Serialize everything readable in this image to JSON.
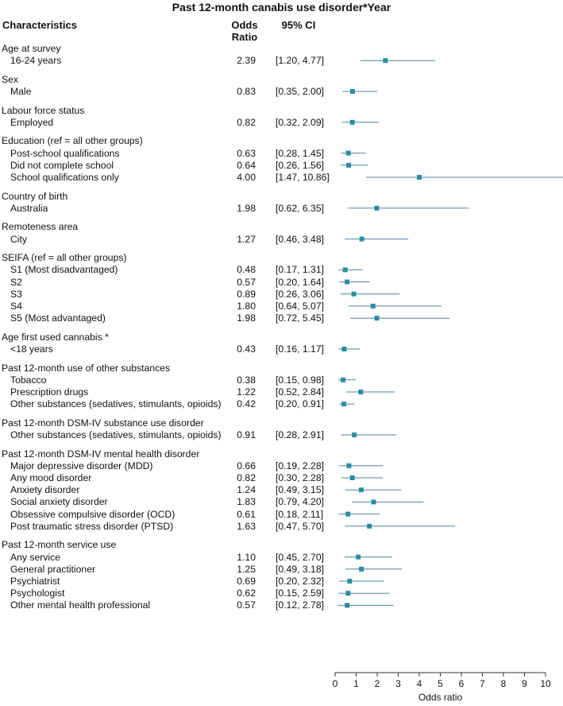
{
  "title": "Past 12-month canabis use disorder*Year",
  "headers": {
    "characteristics": "Characteristics",
    "odds_ratio_line1": "Odds",
    "odds_ratio_line2": "Ratio",
    "ci": "95% CI"
  },
  "colors": {
    "marker": "#2b8ca3",
    "ci_line": "#4d87a0",
    "axis": "#333333",
    "text": "#111111"
  },
  "chart_data": {
    "type": "scatter",
    "subtype": "forest-plot",
    "title": "Past 12-month canabis use disorder*Year",
    "xlabel": "Odds ratio",
    "xlim": [
      0,
      10
    ],
    "xticks": [
      0,
      1,
      2,
      3,
      4,
      5,
      6,
      7,
      8,
      9,
      10
    ],
    "rows": [
      {
        "kind": "group",
        "text": "Age at survey"
      },
      {
        "kind": "item",
        "label": "16-24 years",
        "or": 2.39,
        "lo": 1.2,
        "hi": 4.77,
        "or_text": "2.39",
        "ci_text": "[1.20, 4.77]"
      },
      {
        "kind": "group",
        "text": "Sex"
      },
      {
        "kind": "item",
        "label": "Male",
        "or": 0.83,
        "lo": 0.35,
        "hi": 2.0,
        "or_text": "0.83",
        "ci_text": "[0.35, 2.00]"
      },
      {
        "kind": "group",
        "text": "Labour force status"
      },
      {
        "kind": "item",
        "label": "Employed",
        "or": 0.82,
        "lo": 0.32,
        "hi": 2.09,
        "or_text": "0.82",
        "ci_text": "[0.32, 2.09]"
      },
      {
        "kind": "group",
        "text": "Education (ref = all other groups)"
      },
      {
        "kind": "item",
        "label": "Post-school qualifications",
        "or": 0.63,
        "lo": 0.28,
        "hi": 1.45,
        "or_text": "0.63",
        "ci_text": "[0.28, 1.45]"
      },
      {
        "kind": "item",
        "label": "Did not complete school",
        "or": 0.64,
        "lo": 0.26,
        "hi": 1.56,
        "or_text": "0.64",
        "ci_text": "[0.26, 1.56]"
      },
      {
        "kind": "item",
        "label": "School qualifications only",
        "or": 4.0,
        "lo": 1.47,
        "hi": 10.86,
        "or_text": "4.00",
        "ci_text": "[1.47, 10.86]"
      },
      {
        "kind": "group",
        "text": "Country of birth"
      },
      {
        "kind": "item",
        "label": "Australia",
        "or": 1.98,
        "lo": 0.62,
        "hi": 6.35,
        "or_text": "1.98",
        "ci_text": "[0.62, 6.35]"
      },
      {
        "kind": "group",
        "text": "Remoteness area"
      },
      {
        "kind": "item",
        "label": "City",
        "or": 1.27,
        "lo": 0.46,
        "hi": 3.48,
        "or_text": "1.27",
        "ci_text": "[0.46, 3.48]"
      },
      {
        "kind": "group",
        "text": "SEIFA (ref = all other groups)"
      },
      {
        "kind": "item",
        "label": "S1 (Most disadvantaged)",
        "or": 0.48,
        "lo": 0.17,
        "hi": 1.31,
        "or_text": "0.48",
        "ci_text": "[0.17, 1.31]"
      },
      {
        "kind": "item",
        "label": "S2",
        "or": 0.57,
        "lo": 0.2,
        "hi": 1.64,
        "or_text": "0.57",
        "ci_text": "[0.20, 1.64]"
      },
      {
        "kind": "item",
        "label": "S3",
        "or": 0.89,
        "lo": 0.26,
        "hi": 3.06,
        "or_text": "0.89",
        "ci_text": "[0.26, 3.06]"
      },
      {
        "kind": "item",
        "label": "S4",
        "or": 1.8,
        "lo": 0.64,
        "hi": 5.07,
        "or_text": "1.80",
        "ci_text": "[0.64, 5.07]"
      },
      {
        "kind": "item",
        "label": "S5 (Most advantaged)",
        "or": 1.98,
        "lo": 0.72,
        "hi": 5.45,
        "or_text": "1.98",
        "ci_text": "[0.72, 5.45]"
      },
      {
        "kind": "group",
        "text": "Age first used cannabis *"
      },
      {
        "kind": "item",
        "label": "<18 years",
        "or": 0.43,
        "lo": 0.16,
        "hi": 1.17,
        "or_text": "0.43",
        "ci_text": "[0.16, 1.17]"
      },
      {
        "kind": "group",
        "text": "Past 12-month use of other substances"
      },
      {
        "kind": "item",
        "label": "Tobacco",
        "or": 0.38,
        "lo": 0.15,
        "hi": 0.98,
        "or_text": "0.38",
        "ci_text": "[0.15, 0.98]"
      },
      {
        "kind": "item",
        "label": "Prescription drugs",
        "or": 1.22,
        "lo": 0.52,
        "hi": 2.84,
        "or_text": "1.22",
        "ci_text": "[0.52, 2.84]"
      },
      {
        "kind": "item",
        "label": "Other substances (sedatives, stimulants, opioids)",
        "or": 0.42,
        "lo": 0.2,
        "hi": 0.91,
        "or_text": "0.42",
        "ci_text": "[0.20, 0.91]"
      },
      {
        "kind": "group",
        "text": "Past 12-month DSM-IV substance use disorder"
      },
      {
        "kind": "item",
        "label": "Other substances (sedatives, stimulants, opioids)",
        "or": 0.91,
        "lo": 0.28,
        "hi": 2.91,
        "or_text": "0.91",
        "ci_text": "[0.28, 2.91]"
      },
      {
        "kind": "group",
        "text": "Past 12-month DSM-IV mental health disorder"
      },
      {
        "kind": "item",
        "label": "Major depressive disorder (MDD)",
        "or": 0.66,
        "lo": 0.19,
        "hi": 2.28,
        "or_text": "0.66",
        "ci_text": "[0.19, 2.28]"
      },
      {
        "kind": "item",
        "label": "Any mood disorder",
        "or": 0.82,
        "lo": 0.3,
        "hi": 2.28,
        "or_text": "0.82",
        "ci_text": "[0.30, 2.28]"
      },
      {
        "kind": "item",
        "label": "Anxiety disorder",
        "or": 1.24,
        "lo": 0.49,
        "hi": 3.15,
        "or_text": "1.24",
        "ci_text": "[0.49, 3.15]"
      },
      {
        "kind": "item",
        "label": "Social anxiety disorder",
        "or": 1.83,
        "lo": 0.79,
        "hi": 4.2,
        "or_text": "1.83",
        "ci_text": "[0.79, 4.20]"
      },
      {
        "kind": "item",
        "label": "Obsessive compulsive disorder (OCD)",
        "or": 0.61,
        "lo": 0.18,
        "hi": 2.11,
        "or_text": "0.61",
        "ci_text": "[0.18, 2.11]"
      },
      {
        "kind": "item",
        "label": "Post traumatic stress disorder (PTSD)",
        "or": 1.63,
        "lo": 0.47,
        "hi": 5.7,
        "or_text": "1.63",
        "ci_text": "[0.47, 5.70]"
      },
      {
        "kind": "group",
        "text": "Past 12-month service use"
      },
      {
        "kind": "item",
        "label": "Any service",
        "or": 1.1,
        "lo": 0.45,
        "hi": 2.7,
        "or_text": "1.10",
        "ci_text": "[0.45, 2.70]"
      },
      {
        "kind": "item",
        "label": "General practitioner",
        "or": 1.25,
        "lo": 0.49,
        "hi": 3.18,
        "or_text": "1.25",
        "ci_text": "[0.49, 3.18]"
      },
      {
        "kind": "item",
        "label": "Psychiatrist",
        "or": 0.69,
        "lo": 0.2,
        "hi": 2.32,
        "or_text": "0.69",
        "ci_text": "[0.20, 2.32]"
      },
      {
        "kind": "item",
        "label": "Psychologist",
        "or": 0.62,
        "lo": 0.15,
        "hi": 2.59,
        "or_text": "0.62",
        "ci_text": "[0.15, 2.59]"
      },
      {
        "kind": "item",
        "label": "Other mental health professional",
        "or": 0.57,
        "lo": 0.12,
        "hi": 2.78,
        "or_text": "0.57",
        "ci_text": "[0.12, 2.78]"
      }
    ]
  }
}
